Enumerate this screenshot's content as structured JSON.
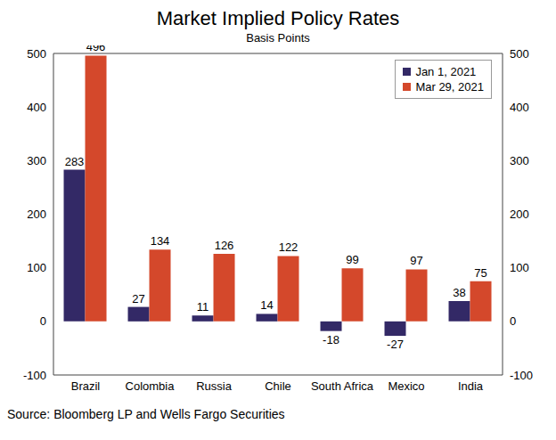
{
  "chart_data": {
    "type": "bar",
    "title": "Market Implied Policy Rates",
    "subtitle": "Basis Points",
    "source": "Source: Bloomberg LP and Wells Fargo Securities",
    "categories": [
      "Brazil",
      "Colombia",
      "Russia",
      "Chile",
      "South Africa",
      "Mexico",
      "India"
    ],
    "series": [
      {
        "name": "Jan 1, 2021",
        "color": "#332966",
        "values": [
          283,
          27,
          11,
          14,
          -18,
          -27,
          38
        ]
      },
      {
        "name": "Mar 29, 2021",
        "color": "#D4482B",
        "values": [
          496,
          134,
          126,
          122,
          99,
          97,
          75
        ]
      }
    ],
    "ylim": [
      -100,
      500
    ],
    "yticks": [
      -100,
      0,
      100,
      200,
      300,
      400,
      500
    ],
    "y2lim": [
      -100,
      500
    ],
    "y2ticks": [
      -100,
      0,
      100,
      200,
      300,
      400,
      500
    ],
    "data_labels": true,
    "legend": "upper right",
    "grid": false
  }
}
